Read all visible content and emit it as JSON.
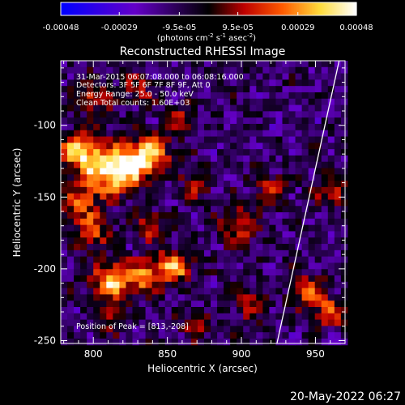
{
  "chart_data": {
    "type": "heatmap",
    "title": "Reconstructed RHESSI Image",
    "xlabel": "Heliocentric X (arcsec)",
    "ylabel": "Heliocentric Y (arcsec)",
    "xlim": [
      778,
      970
    ],
    "ylim": [
      -252,
      -55
    ],
    "x_ticks": [
      "800",
      "850",
      "900",
      "950"
    ],
    "x_tick_values": [
      800,
      850,
      900,
      950
    ],
    "y_ticks": [
      "-100",
      "-150",
      "-200",
      "-250"
    ],
    "y_tick_values": [
      -100,
      -150,
      -200,
      -250
    ],
    "colorbar": {
      "ticks": [
        "-0.00048",
        "-0.00029",
        "-9.5e-05",
        "9.5e-05",
        "0.00029",
        "0.00048"
      ],
      "tick_values": [
        -0.00048,
        -0.00029,
        -9.5e-05,
        9.5e-05,
        0.00029,
        0.00048
      ],
      "range": [
        -0.00048,
        0.00048
      ],
      "units_base": "(photons cm",
      "units_sup1": "-2",
      "units_mid": " s",
      "units_sup2": "-1",
      "units_end": " asec",
      "units_sup3": "-2",
      "units_close": ")"
    },
    "annotations": [
      "31-Mar-2015 06:07:08.000 to 06:08:16.000",
      "Detectors: 3F 5F 6F 7F 8F 9F, Att 0",
      "Energy Range: 25.0 - 50.0 keV",
      "Clean   Total counts: 1.60E+03"
    ],
    "peak_label": "Position of Peak = [813,-208]",
    "peak": [
      813,
      -208
    ],
    "sources": [
      {
        "x": 790,
        "y": -118,
        "sigma": 9,
        "amp": 0.00048
      },
      {
        "x": 808,
        "y": -132,
        "sigma": 12,
        "amp": 0.00046
      },
      {
        "x": 825,
        "y": -128,
        "sigma": 10,
        "amp": 0.00042
      },
      {
        "x": 840,
        "y": -120,
        "sigma": 9,
        "amp": 0.0004
      },
      {
        "x": 790,
        "y": -155,
        "sigma": 9,
        "amp": 0.0003
      },
      {
        "x": 800,
        "y": -175,
        "sigma": 8,
        "amp": 0.00028
      },
      {
        "x": 813,
        "y": -208,
        "sigma": 9,
        "amp": 0.00048
      },
      {
        "x": 835,
        "y": -205,
        "sigma": 8,
        "amp": 0.00038
      },
      {
        "x": 855,
        "y": -198,
        "sigma": 8,
        "amp": 0.00046
      },
      {
        "x": 870,
        "y": -140,
        "sigma": 7,
        "amp": 0.00026
      },
      {
        "x": 840,
        "y": -170,
        "sigma": 7,
        "amp": 0.00025
      },
      {
        "x": 900,
        "y": -170,
        "sigma": 9,
        "amp": 0.00028
      },
      {
        "x": 920,
        "y": -145,
        "sigma": 8,
        "amp": 0.00024
      },
      {
        "x": 905,
        "y": -225,
        "sigma": 8,
        "amp": 0.00022
      },
      {
        "x": 945,
        "y": -215,
        "sigma": 8,
        "amp": 0.0003
      },
      {
        "x": 960,
        "y": -230,
        "sigma": 7,
        "amp": 0.00032
      },
      {
        "x": 962,
        "y": -145,
        "sigma": 8,
        "amp": 0.0003
      },
      {
        "x": 800,
        "y": -80,
        "sigma": 9,
        "amp": 0.00024
      },
      {
        "x": 830,
        "y": -75,
        "sigma": 7,
        "amp": 0.00022
      },
      {
        "x": 860,
        "y": -95,
        "sigma": 7,
        "amp": 0.0002
      },
      {
        "x": 870,
        "y": -240,
        "sigma": 7,
        "amp": 0.00018
      },
      {
        "x": 810,
        "y": -235,
        "sigma": 7,
        "amp": 0.0002
      }
    ],
    "limb": [
      [
        966,
        -55
      ],
      [
        948,
        -140
      ],
      [
        935,
        -200
      ],
      [
        924,
        -252
      ]
    ],
    "grid": false
  },
  "timestamp": "20-May-2022 06:27"
}
